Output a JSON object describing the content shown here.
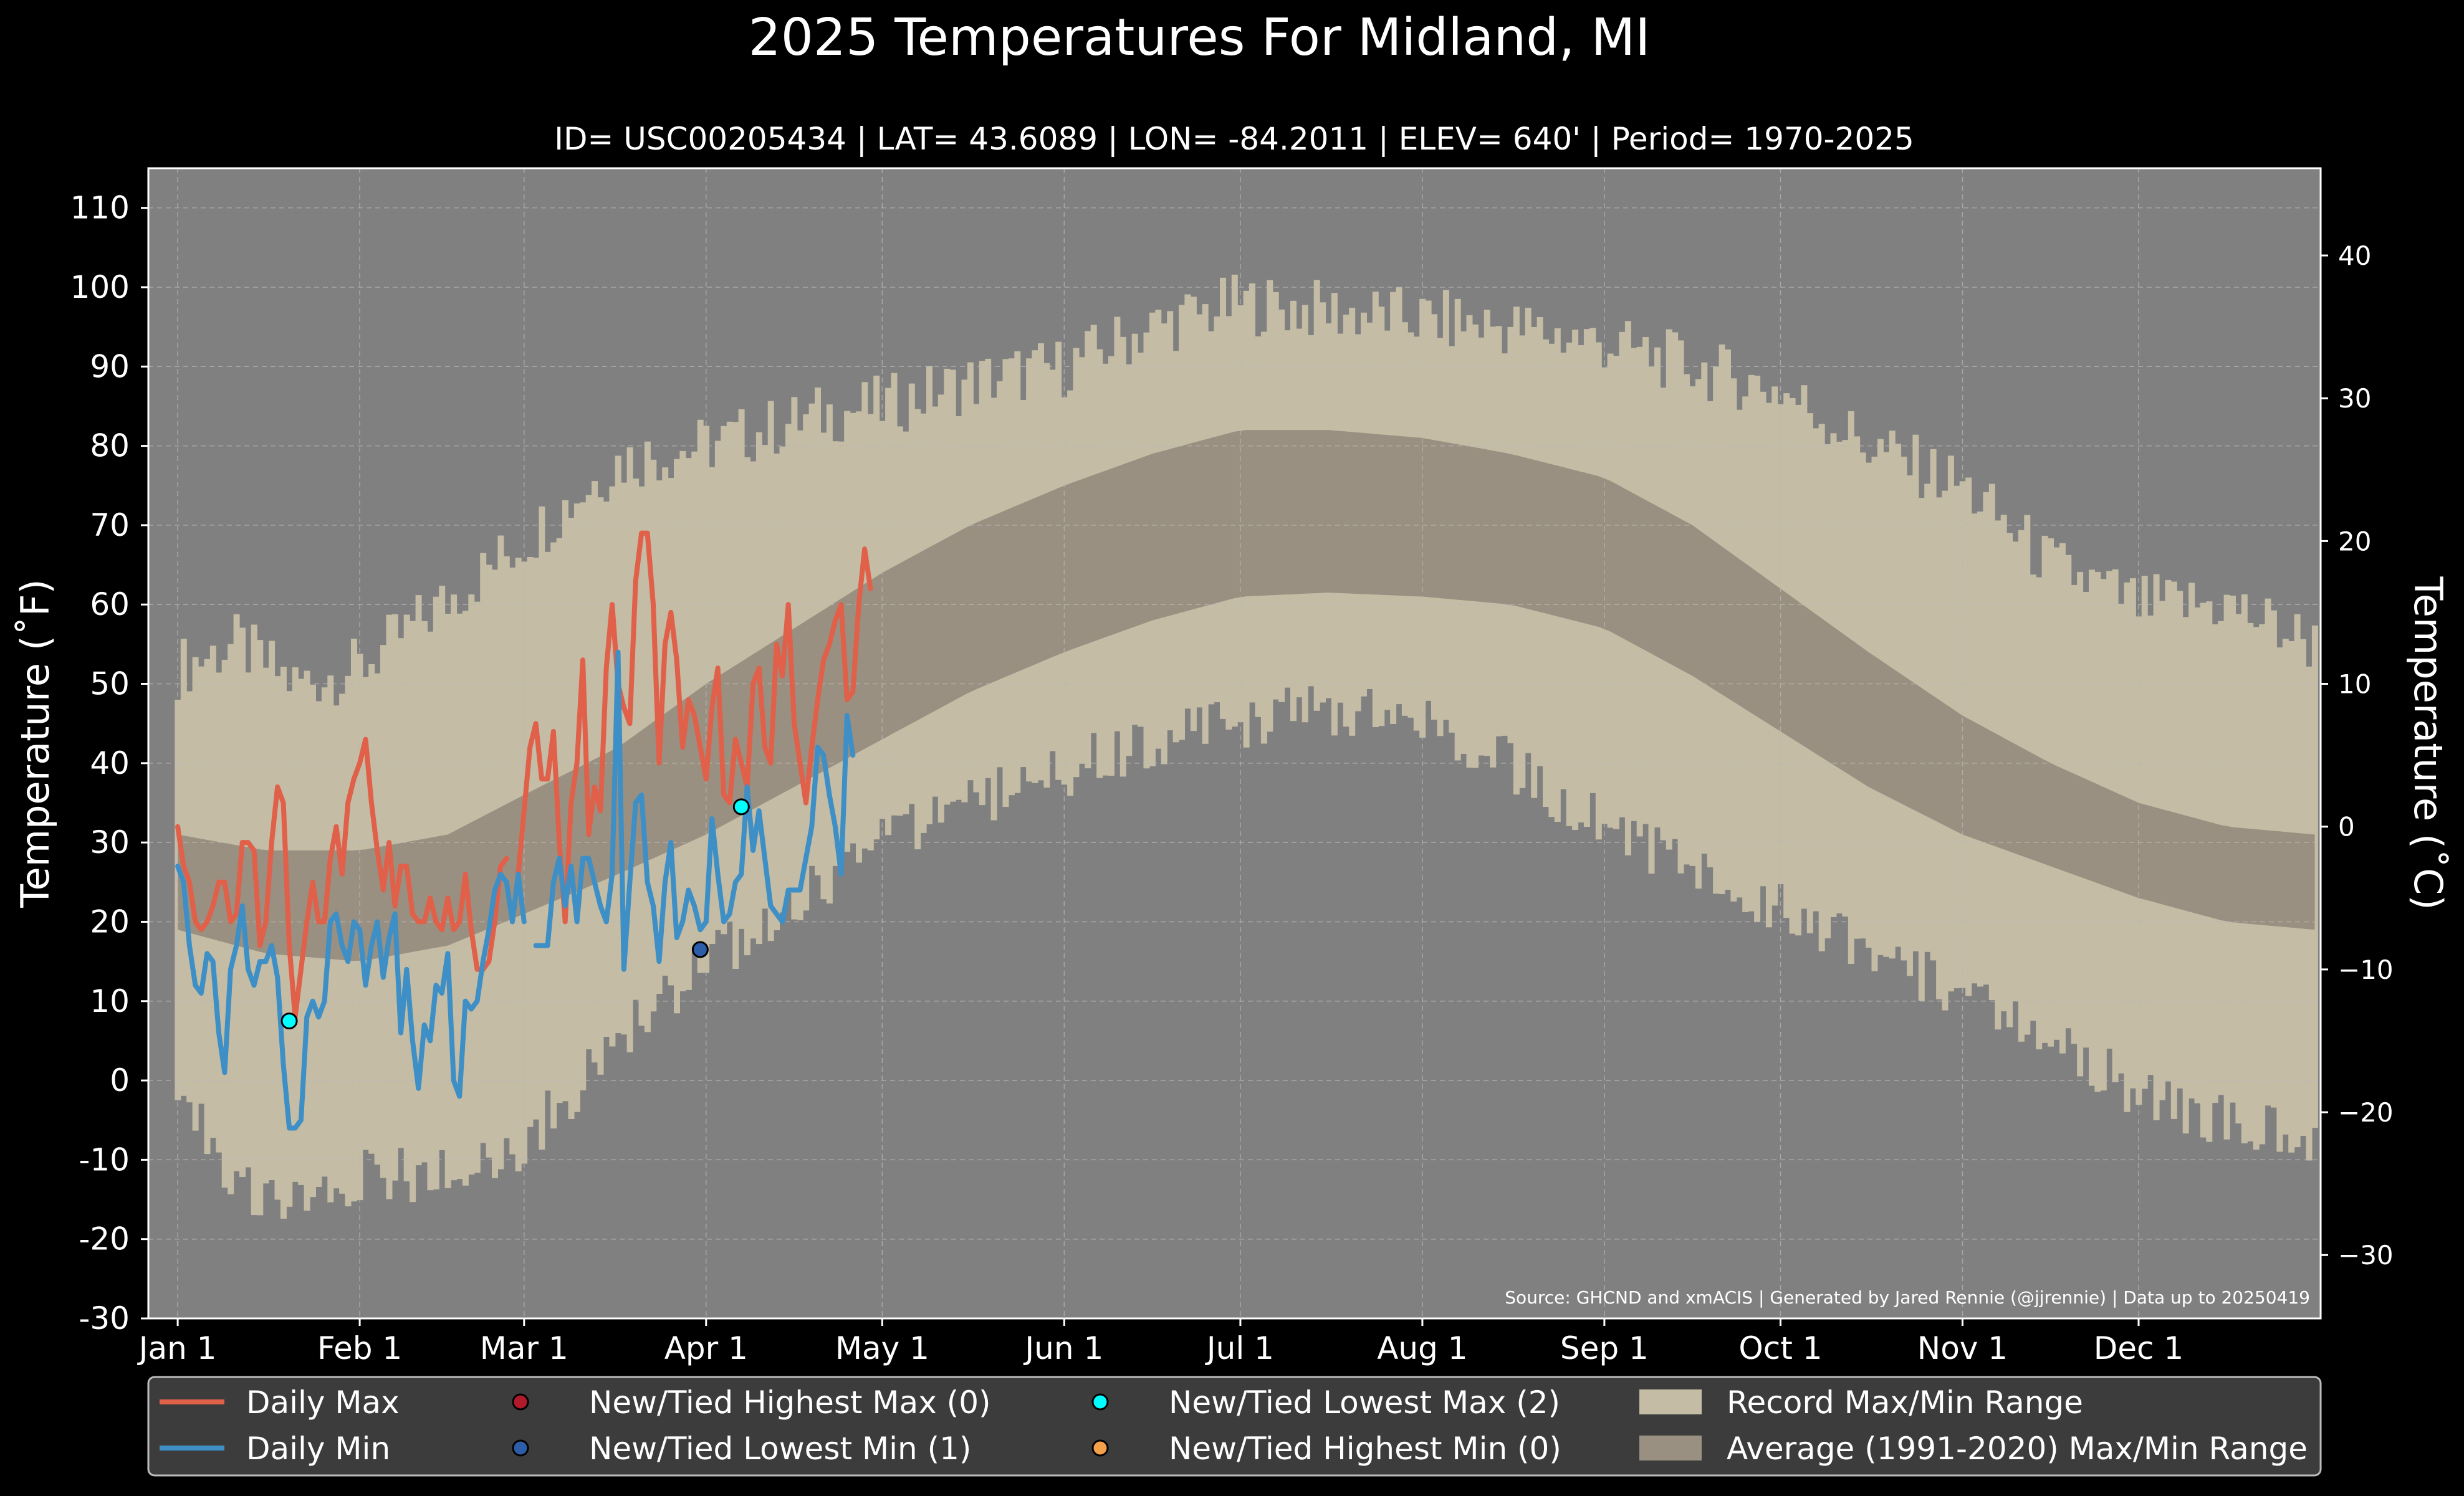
{
  "chart_data": {
    "type": "line",
    "title": "2025 Temperatures For Midland, MI",
    "subtitle": "ID= USC00205434 | LAT= 43.6089 | LON= -84.2011 | ELEV= 640' | Period= 1970-2025",
    "ylabel": "Temperature ($^\\circ$F)",
    "ylabel_left_display": "Temperature (˚F)",
    "ylabel_right_display": "Temperature (˚C)",
    "ylim": [
      -30,
      115
    ],
    "y2lim_celsius": [
      -34.44,
      46.11
    ],
    "yticks": [
      -30,
      -20,
      -10,
      0,
      10,
      20,
      30,
      40,
      50,
      60,
      70,
      80,
      90,
      100,
      110
    ],
    "yticks_right": [
      -30,
      -20,
      -10,
      0,
      10,
      20,
      30,
      40
    ],
    "yticks_right_labels": [
      "−30",
      "−20",
      "−10",
      "0",
      "10",
      "20",
      "30",
      "40"
    ],
    "xlim_day": [
      -5,
      365
    ],
    "month_ticks": [
      {
        "label": "Jan 1",
        "day": 0
      },
      {
        "label": "Feb 1",
        "day": 31
      },
      {
        "label": "Mar 1",
        "day": 59
      },
      {
        "label": "Apr 1",
        "day": 90
      },
      {
        "label": "May 1",
        "day": 120
      },
      {
        "label": "Jun 1",
        "day": 151
      },
      {
        "label": "Jul 1",
        "day": 181
      },
      {
        "label": "Aug 1",
        "day": 212
      },
      {
        "label": "Sep 1",
        "day": 243
      },
      {
        "label": "Oct 1",
        "day": 273
      },
      {
        "label": "Nov 1",
        "day": 304
      },
      {
        "label": "Dec 1",
        "day": 334
      }
    ],
    "grid": true,
    "legend_position": "bottom",
    "source_note": "Source: GHCND and xmACIS | Generated by Jared Rennie (@jjrennie) | Data up to 20250419",
    "series": [
      {
        "name": "Daily Max",
        "color": "#e0604a",
        "days_start": 0,
        "values": [
          32,
          27,
          25,
          20,
          19,
          20,
          22,
          25,
          25,
          20,
          21,
          30,
          30,
          29,
          17,
          20,
          30,
          37,
          35,
          17,
          8,
          14,
          20,
          25,
          20,
          20,
          28,
          32,
          26,
          35,
          38,
          40,
          43,
          35,
          29,
          24,
          30,
          22,
          27,
          27,
          21,
          20,
          20,
          23,
          20,
          19,
          23,
          19,
          20,
          26,
          19,
          14,
          14,
          15,
          20,
          27,
          28,
          27,
          26,
          34,
          42,
          45,
          38,
          38,
          44,
          30,
          20,
          35,
          40,
          53,
          31,
          37,
          34,
          52,
          60,
          50,
          47,
          45,
          63,
          69,
          69,
          60,
          40,
          55,
          59,
          53,
          42,
          48,
          46,
          42,
          38,
          47,
          52,
          36,
          35,
          43,
          40,
          37,
          50,
          52,
          42,
          40,
          55,
          51,
          60,
          45,
          40,
          35,
          42,
          48,
          53,
          55,
          58,
          60,
          48,
          49,
          60,
          67,
          62
        ],
        "gaps": [
          [
            56,
            58
          ]
        ]
      },
      {
        "name": "Daily Min",
        "color": "#3d8fc6",
        "days_start": 0,
        "values": [
          27,
          25,
          17,
          12,
          11,
          16,
          15,
          6,
          1,
          14,
          17,
          22,
          14,
          12,
          15,
          15,
          17,
          13,
          2,
          -6,
          -6,
          -5,
          8,
          10,
          8,
          10,
          20,
          21,
          17,
          15,
          20,
          19,
          12,
          17,
          20,
          13,
          18,
          21,
          6,
          14,
          5,
          -1,
          7,
          5,
          12,
          11,
          16,
          0,
          -2,
          10,
          9,
          10,
          15,
          19,
          24,
          26,
          25,
          20,
          26,
          20,
          12,
          17,
          17,
          17,
          25,
          28,
          22,
          27,
          20,
          28,
          28,
          25,
          22,
          20,
          26,
          54,
          14,
          25,
          35,
          36,
          25,
          22,
          15,
          25,
          30,
          18,
          20,
          24,
          22,
          19,
          20,
          33,
          26,
          20,
          21,
          25,
          26,
          37,
          29,
          34,
          28,
          22,
          21,
          20,
          24,
          24,
          24,
          28,
          32,
          42,
          41,
          36,
          32,
          26,
          46,
          41
        ],
        "gaps": [
          [
            59,
            61
          ]
        ]
      },
      {
        "name": "Average (1991-2020) Max/Min Range",
        "color": "#9a9081",
        "kind": "band",
        "day": [
          0,
          15,
          31,
          46,
          59,
          75,
          90,
          105,
          120,
          135,
          151,
          166,
          181,
          196,
          212,
          227,
          243,
          258,
          273,
          288,
          304,
          319,
          334,
          349,
          364
        ],
        "high": [
          31,
          29,
          29,
          31,
          36,
          42,
          50,
          57,
          64,
          70,
          75,
          79,
          82,
          82,
          81,
          79,
          76,
          70,
          62,
          54,
          46,
          40,
          35,
          32,
          31
        ],
        "low": [
          19,
          16,
          15,
          17,
          21,
          26,
          31,
          37,
          43,
          49,
          54,
          58,
          61,
          61.5,
          61,
          60,
          57,
          51,
          44,
          37,
          31,
          27,
          23,
          20,
          19
        ]
      },
      {
        "name": "Record Max/Min Range",
        "color": "#c4bca4",
        "kind": "band",
        "day": [
          0,
          10,
          20,
          31,
          45,
          59,
          75,
          90,
          100,
          110,
          120,
          135,
          151,
          166,
          181,
          196,
          212,
          227,
          243,
          258,
          273,
          288,
          304,
          319,
          334,
          349,
          364
        ],
        "high": [
          52,
          55,
          50,
          52,
          60,
          68,
          78,
          80,
          82,
          84,
          85,
          88,
          90,
          95,
          98,
          97,
          96,
          95,
          93,
          90,
          87,
          80,
          75,
          65,
          60,
          60,
          55
        ],
        "low": [
          1,
          -13,
          -15,
          -12,
          -12,
          -8,
          5,
          15,
          20,
          25,
          30,
          35,
          39,
          43,
          45,
          47,
          45,
          40,
          32,
          27,
          22,
          16,
          11,
          6,
          -2,
          -5,
          -8
        ]
      }
    ],
    "markers": [
      {
        "name": "New/Tied Lowest Max",
        "day": 19,
        "value": 7.5,
        "color": "#00ffff"
      },
      {
        "name": "New/Tied Lowest Min",
        "day": 89,
        "value": 16.5,
        "color": "#2c5da8"
      },
      {
        "name": "New/Tied Lowest Max",
        "day": 96,
        "value": 34.5,
        "color": "#00ffff"
      }
    ],
    "legend": [
      {
        "label": "Daily Max",
        "kind": "line",
        "color": "#e0604a"
      },
      {
        "label": "Daily Min",
        "kind": "line",
        "color": "#3d8fc6"
      },
      {
        "label": "New/Tied Highest Max (0)",
        "kind": "dot",
        "color": "#b01a2a"
      },
      {
        "label": "New/Tied Lowest Min (1)",
        "kind": "dot",
        "color": "#2c5da8"
      },
      {
        "label": "New/Tied Lowest Max (2)",
        "kind": "dot",
        "color": "#00ffff"
      },
      {
        "label": "New/Tied Highest Min (0)",
        "kind": "dot",
        "color": "#f4a04a"
      },
      {
        "label": "Record Max/Min Range",
        "kind": "patch",
        "color": "#c4bca4"
      },
      {
        "label": "Average (1991-2020) Max/Min Range",
        "kind": "patch",
        "color": "#9a9081"
      }
    ]
  },
  "colors": {
    "figure_bg": "#000000",
    "plot_bg": "#808080",
    "legend_bg": "#3c3c3c",
    "grid": "#b8b8b8",
    "text": "#ffffff"
  }
}
